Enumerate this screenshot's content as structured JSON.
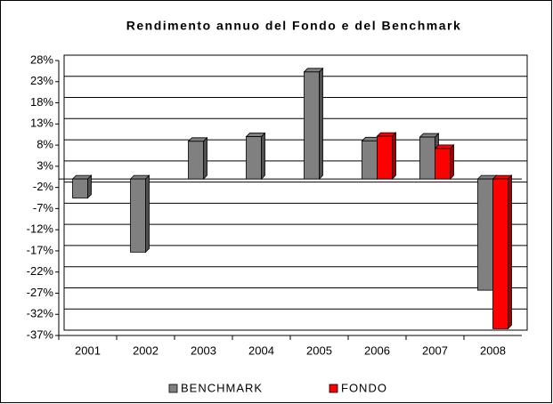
{
  "chart_data": {
    "type": "bar",
    "title": "Rendimento annuo del Fondo e del Benchmark",
    "categories": [
      "2001",
      "2002",
      "2003",
      "2004",
      "2005",
      "2006",
      "2007",
      "2008"
    ],
    "series": [
      {
        "name": "BENCHMARK",
        "color": "#808080",
        "values": [
          -4.5,
          -17.3,
          8.9,
          10.0,
          25.3,
          9.0,
          9.9,
          -26.3
        ]
      },
      {
        "name": "FONDO",
        "color": "#ff0000",
        "values": [
          null,
          null,
          null,
          null,
          null,
          10.1,
          7.2,
          -35.4
        ]
      }
    ],
    "ylim": [
      -37,
      28
    ],
    "yticks": [
      {
        "value": 28,
        "label": "28%"
      },
      {
        "value": 23,
        "label": "23%"
      },
      {
        "value": 18,
        "label": "18%"
      },
      {
        "value": 13,
        "label": "13%"
      },
      {
        "value": 8,
        "label": "8%"
      },
      {
        "value": 3,
        "label": "3%"
      },
      {
        "value": -2,
        "label": "-2%"
      },
      {
        "value": -7,
        "label": "-7%"
      },
      {
        "value": -12,
        "label": "-12%"
      },
      {
        "value": -17,
        "label": "-17%"
      },
      {
        "value": -22,
        "label": "-22%"
      },
      {
        "value": -27,
        "label": "-27%"
      },
      {
        "value": -32,
        "label": "-32%"
      },
      {
        "value": -37,
        "label": "-37%"
      }
    ],
    "grid": true,
    "legend": "bottom"
  }
}
